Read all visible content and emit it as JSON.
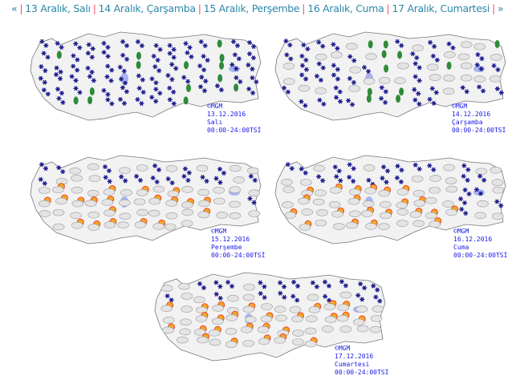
{
  "nav": {
    "prev": "«",
    "next": "»",
    "days": [
      "13 Aralık, Salı",
      "14 Aralık, Çarşamba",
      "15 Aralık, Perşembe",
      "16 Aralık, Cuma",
      "17 Aralık, Cumartesi"
    ]
  },
  "maps": [
    {
      "copyright": "©MGM",
      "date": "13.12.2016",
      "day": "Salı",
      "time": "00:00-24:00TSİ",
      "weather": [
        "snow",
        "rain"
      ]
    },
    {
      "copyright": "©MGM",
      "date": "14.12.2016",
      "day": "Çarşamba",
      "time": "00:00-24:00TSİ",
      "weather": [
        "snow",
        "cloudy",
        "rain"
      ]
    },
    {
      "copyright": "©MGM",
      "date": "15.12.2016",
      "day": "Perşembe",
      "time": "00:00-24:00TSİ",
      "weather": [
        "cloudy",
        "snow",
        "partly-sunny"
      ]
    },
    {
      "copyright": "©MGM",
      "date": "16.12.2016",
      "day": "Cuma",
      "time": "00:00-24:00TSİ",
      "weather": [
        "cloudy",
        "snow",
        "partly-sunny"
      ]
    },
    {
      "copyright": "©MGM",
      "date": "17.12.2016",
      "day": "Cumartesi",
      "time": "00:00-24:00TSİ",
      "weather": [
        "cloudy",
        "snow",
        "partly-sunny"
      ]
    }
  ],
  "colors": {
    "link": "#2b86a8",
    "separator": "#f0506e",
    "caption": "#1a1ae6"
  }
}
